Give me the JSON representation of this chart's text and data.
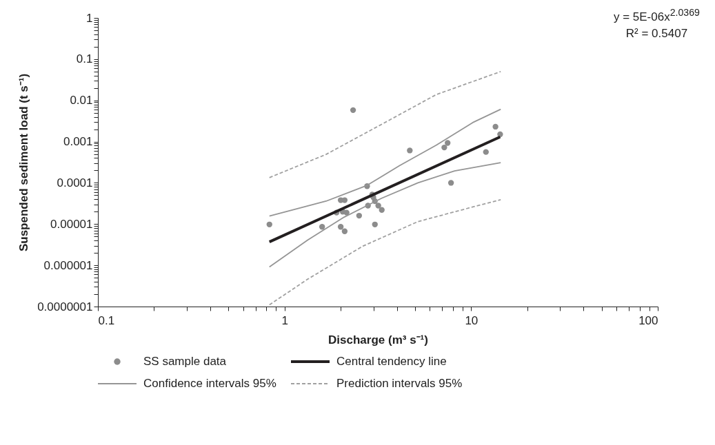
{
  "chart_data": {
    "type": "scatter",
    "xlabel": "Discharge (m³ s⁻¹)",
    "ylabel": "Suspended sediment load (t s⁻¹)",
    "log": "xy",
    "grid": false,
    "legend": "bottom",
    "annotations": [
      "y = 5E-06x$^{2.0369}$",
      "R² = 0.5407"
    ],
    "xlim": [
      0.1,
      100
    ],
    "ylim": [
      1e-07,
      1
    ],
    "xticks": [
      0.1,
      {
        "value": 0.2,
        "label": null
      },
      {
        "value": 0.3,
        "label": null
      },
      {
        "value": 0.4,
        "label": null
      },
      {
        "value": 0.5,
        "label": null
      },
      {
        "value": 0.6,
        "label": null
      },
      {
        "value": 0.7,
        "label": null
      },
      {
        "value": 0.8,
        "label": null
      },
      {
        "value": 0.9,
        "label": null
      },
      1,
      {
        "value": 2,
        "label": null
      },
      {
        "value": 3,
        "label": null
      },
      {
        "value": 4,
        "label": null
      },
      {
        "value": 5,
        "label": null
      },
      {
        "value": 6,
        "label": null
      },
      {
        "value": 7,
        "label": null
      },
      {
        "value": 8,
        "label": null
      },
      {
        "value": 9,
        "label": null
      },
      10,
      {
        "value": 20,
        "label": null
      },
      {
        "value": 30,
        "label": null
      },
      {
        "value": 40,
        "label": null
      },
      {
        "value": 50,
        "label": null
      },
      {
        "value": 60,
        "label": null
      },
      {
        "value": 70,
        "label": null
      },
      {
        "value": 80,
        "label": null
      },
      {
        "value": 90,
        "label": null
      },
      100
    ],
    "yticks": [
      {
        "value": 1e-07,
        "label": "0.0000001"
      },
      {
        "value": 2e-07,
        "label": null
      },
      {
        "value": 3e-07,
        "label": null
      },
      {
        "value": 4e-07,
        "label": null
      },
      {
        "value": 5e-07,
        "label": null
      },
      {
        "value": 6e-07,
        "label": null
      },
      {
        "value": 7e-07,
        "label": null
      },
      {
        "value": 8e-07,
        "label": null
      },
      {
        "value": 9e-07,
        "label": null
      },
      {
        "value": 1e-06,
        "label": "0.000001"
      },
      {
        "value": 2e-06,
        "label": null
      },
      {
        "value": 3e-06,
        "label": null
      },
      {
        "value": 4e-06,
        "label": null
      },
      {
        "value": 5e-06,
        "label": null
      },
      {
        "value": 6e-06,
        "label": null
      },
      {
        "value": 7e-06,
        "label": null
      },
      {
        "value": 8e-06,
        "label": null
      },
      {
        "value": 9e-06,
        "label": null
      },
      {
        "value": 1e-05,
        "label": "0.00001"
      },
      {
        "value": 2e-05,
        "label": null
      },
      {
        "value": 3e-05,
        "label": null
      },
      {
        "value": 4e-05,
        "label": null
      },
      {
        "value": 5e-05,
        "label": null
      },
      {
        "value": 6e-05,
        "label": null
      },
      {
        "value": 7e-05,
        "label": null
      },
      {
        "value": 8e-05,
        "label": null
      },
      {
        "value": 9e-05,
        "label": null
      },
      0.0001,
      {
        "value": 0.0002,
        "label": null
      },
      {
        "value": 0.0003,
        "label": null
      },
      {
        "value": 0.0004,
        "label": null
      },
      {
        "value": 0.0005,
        "label": null
      },
      {
        "value": 0.0006,
        "label": null
      },
      {
        "value": 0.0007,
        "label": null
      },
      {
        "value": 0.0008,
        "label": null
      },
      {
        "value": 0.0009,
        "label": null
      },
      0.001,
      {
        "value": 0.002,
        "label": null
      },
      {
        "value": 0.003,
        "label": null
      },
      {
        "value": 0.004,
        "label": null
      },
      {
        "value": 0.005,
        "label": null
      },
      {
        "value": 0.006,
        "label": null
      },
      {
        "value": 0.007,
        "label": null
      },
      {
        "value": 0.008,
        "label": null
      },
      {
        "value": 0.009,
        "label": null
      },
      0.01,
      {
        "value": 0.02,
        "label": null
      },
      {
        "value": 0.03,
        "label": null
      },
      {
        "value": 0.04,
        "label": null
      },
      {
        "value": 0.05,
        "label": null
      },
      {
        "value": 0.06,
        "label": null
      },
      {
        "value": 0.07,
        "label": null
      },
      {
        "value": 0.08,
        "label": null
      },
      {
        "value": 0.09,
        "label": null
      },
      0.1,
      {
        "value": 0.2,
        "label": null
      },
      {
        "value": 0.3,
        "label": null
      },
      {
        "value": 0.4,
        "label": null
      },
      {
        "value": 0.5,
        "label": null
      },
      {
        "value": 0.6,
        "label": null
      },
      {
        "value": 0.7,
        "label": null
      },
      {
        "value": 0.8,
        "label": null
      },
      {
        "value": 0.9,
        "label": null
      },
      1
    ],
    "series": [
      {
        "name": "SS sample data",
        "marker": "circle",
        "color": "#8c8c8c",
        "x": [
          0.83,
          1.59,
          2.0,
          2.1,
          1.9,
          2.05,
          2.15,
          2.0,
          2.1,
          2.33,
          2.51,
          2.77,
          2.8,
          2.95,
          2.99,
          3.05,
          3.18,
          3.32,
          3.05,
          4.69,
          7.18,
          7.48,
          7.8,
          12.0,
          13.5,
          14.3
        ],
        "values": [
          9.8e-06,
          8.6e-06,
          3.8e-05,
          3.8e-05,
          1.9e-05,
          2e-05,
          1.9e-05,
          8.6e-06,
          6.7e-06,
          0.0058,
          1.6e-05,
          8.3e-05,
          2.8e-05,
          5.2e-05,
          4.5e-05,
          3.6e-05,
          2.8e-05,
          2.2e-05,
          9.8e-06,
          0.00061,
          0.00072,
          0.00093,
          0.0001,
          0.00056,
          0.0023,
          0.0015
        ]
      },
      {
        "name": "Central tendency line",
        "type": "line",
        "color": "#231f20",
        "line_style": "solid",
        "x": [
          0.83,
          14.3
        ],
        "values": [
          3.7e-06,
          0.0013
        ]
      },
      {
        "name": "Confidence intervals 95%",
        "type": "line",
        "color": "#959595",
        "line_style": "solid",
        "x": [
          0.83,
          1.67,
          2.77,
          4.13,
          6.5,
          10.2,
          14.4
        ],
        "values": [
          1.57e-05,
          3.6e-05,
          8.7e-05,
          0.00026,
          0.00082,
          0.0029,
          0.0061
        ]
      },
      {
        "type": "line",
        "color": "#959595",
        "line_style": "solid",
        "x": [
          0.83,
          1.33,
          2.09,
          3.3,
          5.19,
          8.15,
          14.4
        ],
        "values": [
          9.1e-07,
          4.1e-06,
          1.48e-05,
          4.2e-05,
          0.0001,
          0.000195,
          0.00031
        ]
      },
      {
        "name": "Prediction intervals 95%",
        "type": "line",
        "color": "#a0a0a0",
        "line_style": "dashed",
        "x": [
          0.83,
          1.67,
          3.3,
          6.5,
          14.4
        ],
        "values": [
          0.000134,
          0.00049,
          0.0026,
          0.0138,
          0.05
        ]
      },
      {
        "type": "line",
        "color": "#a0a0a0",
        "line_style": "dashed",
        "x": [
          0.83,
          1.33,
          2.62,
          5.19,
          10.2,
          14.4
        ],
        "values": [
          1.1e-07,
          4.6e-07,
          2.9e-06,
          1.15e-05,
          2.6e-05,
          3.9e-05
        ]
      }
    ]
  }
}
